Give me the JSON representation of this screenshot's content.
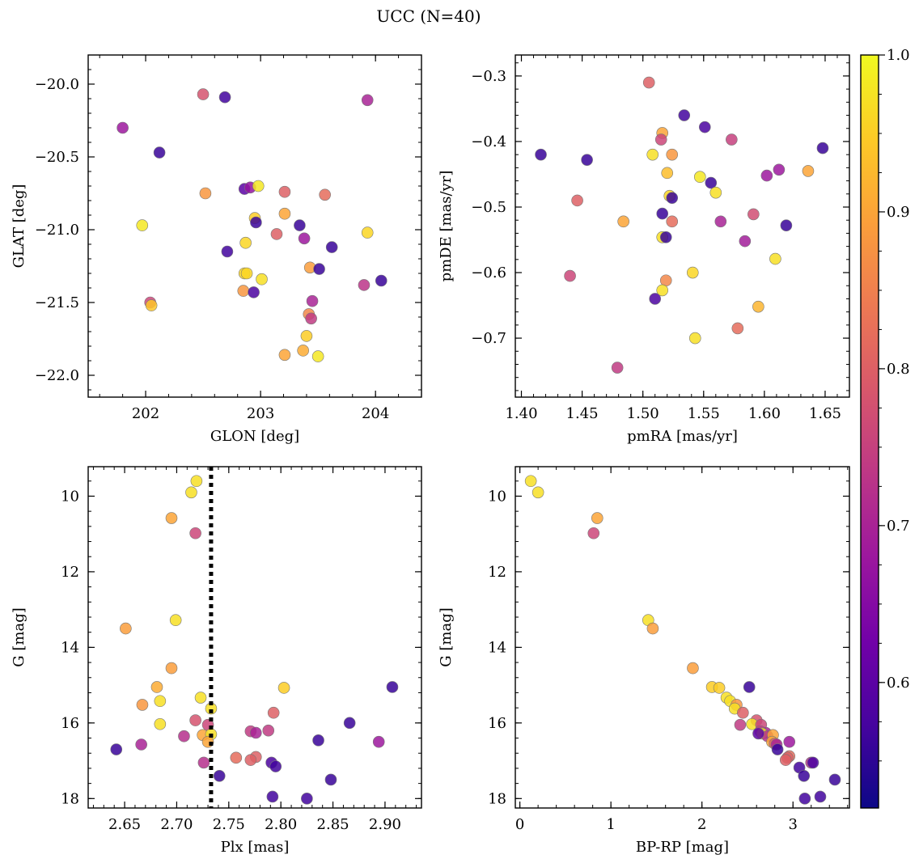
{
  "title": "UCC (N=40)",
  "colormap": {
    "name": "plasma",
    "min": 0.52,
    "max": 1.0,
    "ticks": [
      0.6,
      0.7,
      0.8,
      0.9,
      1.0
    ],
    "tick_labels": [
      "0.6",
      "0.7",
      "0.8",
      "0.9",
      "1.0"
    ],
    "stops": [
      "#0d0887",
      "#46039f",
      "#7201a8",
      "#9c179e",
      "#bd3786",
      "#d8576b",
      "#ed7953",
      "#fb9f3a",
      "#fdca26",
      "#f0f921"
    ]
  },
  "chart_data": [
    {
      "type": "scatter",
      "xlabel": "GLON [deg]",
      "ylabel": "GLAT [deg]",
      "xlim": [
        201.5,
        204.4
      ],
      "ylim": [
        -22.15,
        -19.8
      ],
      "x_ticks": [
        202,
        203,
        204
      ],
      "x_tick_labels": [
        "202",
        "203",
        "204"
      ],
      "y_ticks": [
        -22.0,
        -21.5,
        -21.0,
        -20.5,
        -20.0
      ],
      "y_tick_labels": [
        "−22.0",
        "−21.5",
        "−21.0",
        "−20.5",
        "−20.0"
      ],
      "points": [
        {
          "x": 201.8,
          "y": -20.3,
          "c": 0.68
        },
        {
          "x": 202.12,
          "y": -20.47,
          "c": 0.56
        },
        {
          "x": 202.5,
          "y": -20.07,
          "c": 0.78
        },
        {
          "x": 202.69,
          "y": -20.09,
          "c": 0.57
        },
        {
          "x": 203.93,
          "y": -20.11,
          "c": 0.7
        },
        {
          "x": 201.97,
          "y": -20.97,
          "c": 0.98
        },
        {
          "x": 202.52,
          "y": -20.75,
          "c": 0.88
        },
        {
          "x": 202.86,
          "y": -20.72,
          "c": 0.6
        },
        {
          "x": 202.91,
          "y": -20.71,
          "c": 0.67
        },
        {
          "x": 202.98,
          "y": -20.7,
          "c": 0.98
        },
        {
          "x": 203.21,
          "y": -20.74,
          "c": 0.8
        },
        {
          "x": 203.56,
          "y": -20.76,
          "c": 0.82
        },
        {
          "x": 202.95,
          "y": -20.92,
          "c": 0.95
        },
        {
          "x": 202.96,
          "y": -20.95,
          "c": 0.56
        },
        {
          "x": 203.21,
          "y": -20.89,
          "c": 0.9
        },
        {
          "x": 203.34,
          "y": -20.97,
          "c": 0.56
        },
        {
          "x": 203.14,
          "y": -21.03,
          "c": 0.8
        },
        {
          "x": 203.38,
          "y": -21.06,
          "c": 0.68
        },
        {
          "x": 202.71,
          "y": -21.15,
          "c": 0.57
        },
        {
          "x": 202.87,
          "y": -21.09,
          "c": 0.96
        },
        {
          "x": 203.62,
          "y": -21.12,
          "c": 0.56
        },
        {
          "x": 203.93,
          "y": -21.02,
          "c": 0.96
        },
        {
          "x": 202.86,
          "y": -21.3,
          "c": 0.96
        },
        {
          "x": 203.01,
          "y": -21.34,
          "c": 0.97
        },
        {
          "x": 203.43,
          "y": -21.26,
          "c": 0.89
        },
        {
          "x": 203.51,
          "y": -21.27,
          "c": 0.56
        },
        {
          "x": 204.05,
          "y": -21.35,
          "c": 0.56
        },
        {
          "x": 203.9,
          "y": -21.38,
          "c": 0.73
        },
        {
          "x": 202.85,
          "y": -21.42,
          "c": 0.88
        },
        {
          "x": 202.94,
          "y": -21.43,
          "c": 0.58
        },
        {
          "x": 202.04,
          "y": -21.5,
          "c": 0.76
        },
        {
          "x": 202.05,
          "y": -21.52,
          "c": 0.94
        },
        {
          "x": 203.45,
          "y": -21.49,
          "c": 0.7
        },
        {
          "x": 203.42,
          "y": -21.58,
          "c": 0.86
        },
        {
          "x": 203.44,
          "y": -21.61,
          "c": 0.74
        },
        {
          "x": 203.4,
          "y": -21.73,
          "c": 0.95
        },
        {
          "x": 203.21,
          "y": -21.86,
          "c": 0.9
        },
        {
          "x": 203.37,
          "y": -21.83,
          "c": 0.91
        },
        {
          "x": 203.5,
          "y": -21.87,
          "c": 0.98
        },
        {
          "x": 202.88,
          "y": -21.3,
          "c": 0.96
        }
      ]
    },
    {
      "type": "scatter",
      "xlabel": "pmRA [mas/yr]",
      "ylabel": "pmDE [mas/yr]",
      "xlim": [
        1.395,
        1.67
      ],
      "ylim": [
        -0.79,
        -0.268
      ],
      "x_ticks": [
        1.4,
        1.45,
        1.5,
        1.55,
        1.6,
        1.65
      ],
      "x_tick_labels": [
        "1.40",
        "1.45",
        "1.50",
        "1.55",
        "1.60",
        "1.65"
      ],
      "y_ticks": [
        -0.7,
        -0.6,
        -0.5,
        -0.4,
        -0.3
      ],
      "y_tick_labels": [
        "−0.7",
        "−0.6",
        "−0.5",
        "−0.4",
        "−0.3"
      ],
      "points": [
        {
          "x": 1.505,
          "y": -0.31,
          "c": 0.8
        },
        {
          "x": 1.534,
          "y": -0.36,
          "c": 0.57
        },
        {
          "x": 1.551,
          "y": -0.378,
          "c": 0.58
        },
        {
          "x": 1.573,
          "y": -0.397,
          "c": 0.75
        },
        {
          "x": 1.516,
          "y": -0.387,
          "c": 0.9
        },
        {
          "x": 1.515,
          "y": -0.397,
          "c": 0.76
        },
        {
          "x": 1.524,
          "y": -0.42,
          "c": 0.88
        },
        {
          "x": 1.508,
          "y": -0.42,
          "c": 0.97
        },
        {
          "x": 1.416,
          "y": -0.42,
          "c": 0.56
        },
        {
          "x": 1.454,
          "y": -0.428,
          "c": 0.56
        },
        {
          "x": 1.648,
          "y": -0.41,
          "c": 0.56
        },
        {
          "x": 1.636,
          "y": -0.445,
          "c": 0.9
        },
        {
          "x": 1.612,
          "y": -0.443,
          "c": 0.68
        },
        {
          "x": 1.602,
          "y": -0.452,
          "c": 0.68
        },
        {
          "x": 1.547,
          "y": -0.454,
          "c": 0.98
        },
        {
          "x": 1.556,
          "y": -0.463,
          "c": 0.56
        },
        {
          "x": 1.52,
          "y": -0.448,
          "c": 0.93
        },
        {
          "x": 1.522,
          "y": -0.483,
          "c": 0.96
        },
        {
          "x": 1.524,
          "y": -0.486,
          "c": 0.56
        },
        {
          "x": 1.56,
          "y": -0.478,
          "c": 0.97
        },
        {
          "x": 1.446,
          "y": -0.49,
          "c": 0.8
        },
        {
          "x": 1.516,
          "y": -0.51,
          "c": 0.56
        },
        {
          "x": 1.591,
          "y": -0.511,
          "c": 0.77
        },
        {
          "x": 1.484,
          "y": -0.522,
          "c": 0.9
        },
        {
          "x": 1.524,
          "y": -0.522,
          "c": 0.82
        },
        {
          "x": 1.564,
          "y": -0.522,
          "c": 0.7
        },
        {
          "x": 1.618,
          "y": -0.528,
          "c": 0.56
        },
        {
          "x": 1.516,
          "y": -0.546,
          "c": 0.97
        },
        {
          "x": 1.519,
          "y": -0.546,
          "c": 0.56
        },
        {
          "x": 1.584,
          "y": -0.552,
          "c": 0.69
        },
        {
          "x": 1.609,
          "y": -0.579,
          "c": 0.97
        },
        {
          "x": 1.44,
          "y": -0.605,
          "c": 0.76
        },
        {
          "x": 1.541,
          "y": -0.6,
          "c": 0.96
        },
        {
          "x": 1.519,
          "y": -0.612,
          "c": 0.86
        },
        {
          "x": 1.516,
          "y": -0.627,
          "c": 0.97
        },
        {
          "x": 1.51,
          "y": -0.64,
          "c": 0.58
        },
        {
          "x": 1.595,
          "y": -0.652,
          "c": 0.92
        },
        {
          "x": 1.578,
          "y": -0.685,
          "c": 0.82
        },
        {
          "x": 1.543,
          "y": -0.7,
          "c": 0.97
        },
        {
          "x": 1.479,
          "y": -0.745,
          "c": 0.74
        }
      ]
    },
    {
      "type": "scatter",
      "xlabel": "Plx [mas]",
      "ylabel": "G [mag]",
      "xlim": [
        2.615,
        2.935
      ],
      "ylim": [
        18.25,
        9.22
      ],
      "x_ticks": [
        2.65,
        2.7,
        2.75,
        2.8,
        2.85,
        2.9
      ],
      "x_tick_labels": [
        "2.65",
        "2.70",
        "2.75",
        "2.80",
        "2.85",
        "2.90"
      ],
      "y_ticks": [
        10,
        12,
        14,
        16,
        18
      ],
      "y_tick_labels": [
        "10",
        "12",
        "14",
        "16",
        "18"
      ],
      "vline": 2.733,
      "points": [
        {
          "x": 2.719,
          "y": 9.6,
          "c": 0.97
        },
        {
          "x": 2.714,
          "y": 9.9,
          "c": 0.97
        },
        {
          "x": 2.695,
          "y": 10.58,
          "c": 0.9
        },
        {
          "x": 2.718,
          "y": 10.98,
          "c": 0.76
        },
        {
          "x": 2.699,
          "y": 13.28,
          "c": 0.97
        },
        {
          "x": 2.651,
          "y": 13.5,
          "c": 0.89
        },
        {
          "x": 2.695,
          "y": 14.55,
          "c": 0.89
        },
        {
          "x": 2.681,
          "y": 15.05,
          "c": 0.91
        },
        {
          "x": 2.803,
          "y": 15.07,
          "c": 0.95
        },
        {
          "x": 2.907,
          "y": 15.05,
          "c": 0.56
        },
        {
          "x": 2.723,
          "y": 15.33,
          "c": 0.97
        },
        {
          "x": 2.684,
          "y": 15.42,
          "c": 0.97
        },
        {
          "x": 2.667,
          "y": 15.52,
          "c": 0.88
        },
        {
          "x": 2.733,
          "y": 15.62,
          "c": 0.97
        },
        {
          "x": 2.793,
          "y": 15.73,
          "c": 0.8
        },
        {
          "x": 2.718,
          "y": 15.93,
          "c": 0.78
        },
        {
          "x": 2.866,
          "y": 16.0,
          "c": 0.56
        },
        {
          "x": 2.684,
          "y": 16.03,
          "c": 0.97
        },
        {
          "x": 2.73,
          "y": 16.05,
          "c": 0.76
        },
        {
          "x": 2.771,
          "y": 16.22,
          "c": 0.74
        },
        {
          "x": 2.776,
          "y": 16.26,
          "c": 0.7
        },
        {
          "x": 2.788,
          "y": 16.2,
          "c": 0.74
        },
        {
          "x": 2.707,
          "y": 16.35,
          "c": 0.72
        },
        {
          "x": 2.725,
          "y": 16.32,
          "c": 0.9
        },
        {
          "x": 2.733,
          "y": 16.3,
          "c": 0.97
        },
        {
          "x": 2.73,
          "y": 16.5,
          "c": 0.9
        },
        {
          "x": 2.836,
          "y": 16.46,
          "c": 0.56
        },
        {
          "x": 2.894,
          "y": 16.5,
          "c": 0.68
        },
        {
          "x": 2.666,
          "y": 16.57,
          "c": 0.7
        },
        {
          "x": 2.642,
          "y": 16.7,
          "c": 0.56
        },
        {
          "x": 2.757,
          "y": 16.92,
          "c": 0.82
        },
        {
          "x": 2.776,
          "y": 16.9,
          "c": 0.8
        },
        {
          "x": 2.771,
          "y": 16.98,
          "c": 0.8
        },
        {
          "x": 2.726,
          "y": 17.05,
          "c": 0.72
        },
        {
          "x": 2.791,
          "y": 17.05,
          "c": 0.58
        },
        {
          "x": 2.795,
          "y": 17.15,
          "c": 0.57
        },
        {
          "x": 2.741,
          "y": 17.4,
          "c": 0.56
        },
        {
          "x": 2.848,
          "y": 17.5,
          "c": 0.56
        },
        {
          "x": 2.792,
          "y": 17.95,
          "c": 0.57
        },
        {
          "x": 2.825,
          "y": 18.0,
          "c": 0.57
        }
      ]
    },
    {
      "type": "scatter",
      "xlabel": "BP-RP [mag]",
      "ylabel": "G [mag]",
      "xlim": [
        -0.05,
        3.62
      ],
      "ylim": [
        18.25,
        9.22
      ],
      "x_ticks": [
        0,
        1,
        2,
        3
      ],
      "x_tick_labels": [
        "0",
        "1",
        "2",
        "3"
      ],
      "y_ticks": [
        10,
        12,
        14,
        16,
        18
      ],
      "y_tick_labels": [
        "10",
        "12",
        "14",
        "16",
        "18"
      ],
      "points": [
        {
          "x": 0.12,
          "y": 9.6,
          "c": 0.97
        },
        {
          "x": 0.2,
          "y": 9.9,
          "c": 0.97
        },
        {
          "x": 0.85,
          "y": 10.58,
          "c": 0.9
        },
        {
          "x": 0.81,
          "y": 10.98,
          "c": 0.76
        },
        {
          "x": 1.41,
          "y": 13.28,
          "c": 0.97
        },
        {
          "x": 1.46,
          "y": 13.5,
          "c": 0.89
        },
        {
          "x": 1.9,
          "y": 14.55,
          "c": 0.89
        },
        {
          "x": 2.11,
          "y": 15.05,
          "c": 0.95
        },
        {
          "x": 2.19,
          "y": 15.07,
          "c": 0.95
        },
        {
          "x": 2.52,
          "y": 15.05,
          "c": 0.56
        },
        {
          "x": 2.27,
          "y": 15.33,
          "c": 0.97
        },
        {
          "x": 2.31,
          "y": 15.42,
          "c": 0.97
        },
        {
          "x": 2.38,
          "y": 15.52,
          "c": 0.88
        },
        {
          "x": 2.36,
          "y": 15.62,
          "c": 0.97
        },
        {
          "x": 2.45,
          "y": 15.73,
          "c": 0.8
        },
        {
          "x": 2.6,
          "y": 15.93,
          "c": 0.78
        },
        {
          "x": 2.42,
          "y": 16.05,
          "c": 0.74
        },
        {
          "x": 2.55,
          "y": 16.03,
          "c": 0.97
        },
        {
          "x": 2.65,
          "y": 16.05,
          "c": 0.76
        },
        {
          "x": 2.64,
          "y": 16.22,
          "c": 0.74
        },
        {
          "x": 2.7,
          "y": 16.26,
          "c": 0.7
        },
        {
          "x": 2.66,
          "y": 16.28,
          "c": 0.97
        },
        {
          "x": 2.72,
          "y": 16.35,
          "c": 0.72
        },
        {
          "x": 2.78,
          "y": 16.32,
          "c": 0.9
        },
        {
          "x": 2.62,
          "y": 16.28,
          "c": 0.6
        },
        {
          "x": 2.77,
          "y": 16.5,
          "c": 0.9
        },
        {
          "x": 2.8,
          "y": 16.55,
          "c": 0.8
        },
        {
          "x": 2.96,
          "y": 16.5,
          "c": 0.68
        },
        {
          "x": 2.82,
          "y": 16.57,
          "c": 0.7
        },
        {
          "x": 2.83,
          "y": 16.7,
          "c": 0.56
        },
        {
          "x": 2.96,
          "y": 16.88,
          "c": 0.82
        },
        {
          "x": 2.94,
          "y": 16.92,
          "c": 0.8
        },
        {
          "x": 2.92,
          "y": 16.98,
          "c": 0.8
        },
        {
          "x": 3.2,
          "y": 17.05,
          "c": 0.72
        },
        {
          "x": 3.22,
          "y": 17.05,
          "c": 0.58
        },
        {
          "x": 3.07,
          "y": 17.18,
          "c": 0.57
        },
        {
          "x": 3.12,
          "y": 17.4,
          "c": 0.56
        },
        {
          "x": 3.46,
          "y": 17.5,
          "c": 0.56
        },
        {
          "x": 3.3,
          "y": 17.95,
          "c": 0.57
        },
        {
          "x": 3.13,
          "y": 18.0,
          "c": 0.57
        }
      ]
    }
  ]
}
